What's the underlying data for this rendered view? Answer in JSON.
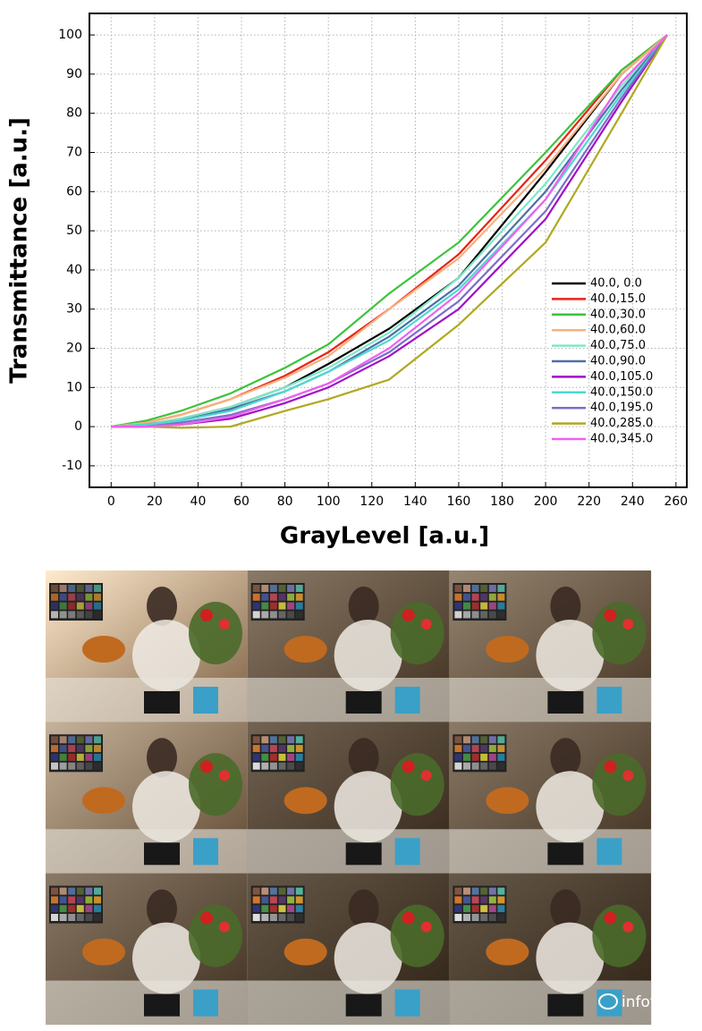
{
  "chart_data": {
    "type": "line",
    "x_label": "GrayLevel [a.u.]",
    "y_label": "Transmittance [a.u.]",
    "x": [
      0,
      16,
      32,
      55,
      80,
      100,
      128,
      160,
      200,
      235,
      256
    ],
    "series": [
      {
        "name": "40.0, 0.0",
        "color": "#000000",
        "values": [
          0,
          0.5,
          2,
          5,
          10,
          16,
          25,
          38,
          65,
          90,
          100
        ]
      },
      {
        "name": "40.0,15.0",
        "color": "#e8231b",
        "values": [
          0,
          1,
          3,
          7,
          13,
          19,
          30,
          44,
          68,
          91,
          100
        ]
      },
      {
        "name": "40.0,30.0",
        "color": "#3cc33c",
        "values": [
          0,
          1.5,
          4,
          8.5,
          15,
          21,
          34,
          47,
          70,
          91,
          100
        ]
      },
      {
        "name": "40.0,60.0",
        "color": "#f7b27d",
        "values": [
          0,
          1,
          3,
          7,
          12.5,
          18,
          30,
          43,
          66,
          90,
          100
        ]
      },
      {
        "name": "40.0,75.0",
        "color": "#7fe8c8",
        "values": [
          0,
          0.5,
          2,
          5,
          10,
          15,
          24,
          38,
          62,
          87,
          100
        ]
      },
      {
        "name": "40.0,90.0",
        "color": "#4f6fa8",
        "values": [
          0,
          0.5,
          1.5,
          4.5,
          9,
          14,
          23,
          36,
          60,
          86,
          100
        ]
      },
      {
        "name": "40.0,105.0",
        "color": "#a010c8",
        "values": [
          0,
          0,
          0.5,
          2,
          6,
          10,
          18,
          30,
          53,
          83,
          100
        ]
      },
      {
        "name": "40.0,150.0",
        "color": "#4fd8d0",
        "values": [
          0,
          0.5,
          1.5,
          4,
          9,
          14,
          22,
          35,
          58,
          85,
          100
        ]
      },
      {
        "name": "40.0,195.0",
        "color": "#7a6fc8",
        "values": [
          0,
          0,
          1,
          3,
          7,
          11,
          19,
          32,
          55,
          84,
          100
        ]
      },
      {
        "name": "40.0,285.0",
        "color": "#b0a820",
        "values": [
          0,
          0,
          -0.3,
          0,
          4,
          7,
          12,
          26,
          47,
          80,
          100
        ]
      },
      {
        "name": "40.0,345.0",
        "color": "#f060f0",
        "values": [
          0,
          0,
          0.5,
          2.5,
          7,
          11,
          20,
          34,
          58,
          88,
          100
        ]
      }
    ],
    "xlim": [
      -10,
      265
    ],
    "ylim": [
      -15.5,
      105.5
    ],
    "xticks": [
      0,
      20,
      40,
      60,
      80,
      100,
      120,
      140,
      160,
      180,
      200,
      220,
      240,
      260
    ],
    "yticks": [
      -10,
      0,
      10,
      20,
      30,
      40,
      50,
      60,
      70,
      80,
      90,
      100
    ],
    "grid": true,
    "legend": "lower right"
  },
  "watermark": "infotek"
}
